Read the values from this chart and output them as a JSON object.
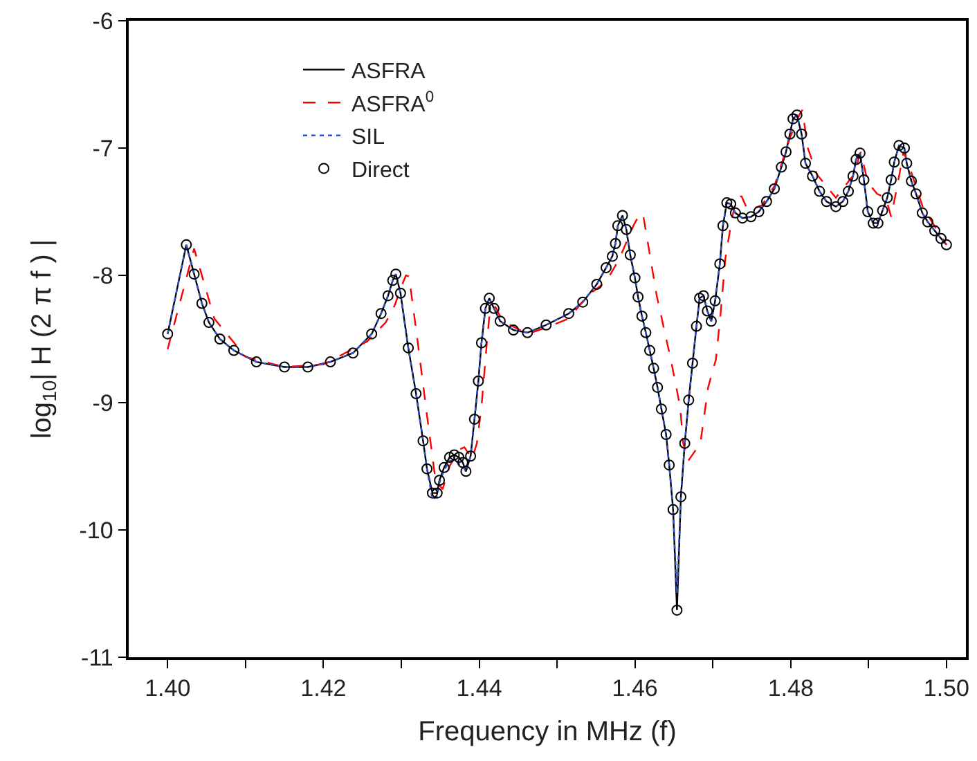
{
  "chart_data": {
    "type": "line",
    "xlabel": "Frequency in MHz (f)",
    "ylabel": "log$_{10}$| H (2 π f ) |",
    "xlim": [
      1.395,
      1.5025
    ],
    "ylim": [
      -11,
      -6
    ],
    "xticks": [
      {
        "value": 1.4,
        "label": "1.40"
      },
      {
        "value": 1.41,
        "label": null
      },
      {
        "value": 1.42,
        "label": "1.42"
      },
      {
        "value": 1.43,
        "label": null
      },
      {
        "value": 1.44,
        "label": "1.44"
      },
      {
        "value": 1.45,
        "label": null
      },
      {
        "value": 1.46,
        "label": "1.46"
      },
      {
        "value": 1.47,
        "label": null
      },
      {
        "value": 1.48,
        "label": "1.48"
      },
      {
        "value": 1.49,
        "label": null
      },
      {
        "value": 1.5,
        "label": "1.50"
      }
    ],
    "yticks": [
      -11,
      -10,
      -9,
      -8,
      -7,
      -6
    ],
    "legend": "top left",
    "x": [
      1.4,
      1.4024,
      1.4034,
      1.4044,
      1.4053,
      1.4067,
      1.4085,
      1.4114,
      1.415,
      1.418,
      1.4209,
      1.4238,
      1.4262,
      1.4274,
      1.4283,
      1.4289,
      1.4293,
      1.4299,
      1.4309,
      1.4319,
      1.4328,
      1.4333,
      1.434,
      1.4346,
      1.4349,
      1.4355,
      1.4362,
      1.4368,
      1.4374,
      1.4379,
      1.4383,
      1.4389,
      1.4394,
      1.4399,
      1.4403,
      1.4408,
      1.4413,
      1.4419,
      1.4427,
      1.4444,
      1.4462,
      1.4486,
      1.4515,
      1.4533,
      1.4551,
      1.4563,
      1.4571,
      1.4575,
      1.4578,
      1.4584,
      1.4589,
      1.4594,
      1.46,
      1.4604,
      1.4609,
      1.4614,
      1.4619,
      1.4624,
      1.4629,
      1.4634,
      1.464,
      1.4644,
      1.4649,
      1.4654,
      1.4659,
      1.4664,
      1.4669,
      1.4674,
      1.4679,
      1.4683,
      1.4688,
      1.4693,
      1.4698,
      1.4703,
      1.4709,
      1.4713,
      1.4718,
      1.4723,
      1.4729,
      1.4738,
      1.4749,
      1.4759,
      1.4769,
      1.4779,
      1.4788,
      1.4794,
      1.4799,
      1.4803,
      1.4808,
      1.4814,
      1.4819,
      1.4828,
      1.4837,
      1.4846,
      1.4858,
      1.4867,
      1.4874,
      1.488,
      1.4884,
      1.4889,
      1.4894,
      1.4899,
      1.4906,
      1.4912,
      1.4918,
      1.4924,
      1.4929,
      1.4933,
      1.4939,
      1.4946,
      1.4949,
      1.4955,
      1.4961,
      1.4969,
      1.4976,
      1.4985,
      1.4993,
      1.5
    ],
    "series": [
      {
        "name": "ASFRA",
        "color": "#000000",
        "line_style": "solid",
        "marker": "none",
        "values": [
          -8.46,
          -7.76,
          -7.99,
          -8.22,
          -8.37,
          -8.5,
          -8.59,
          -8.68,
          -8.72,
          -8.72,
          -8.68,
          -8.61,
          -8.46,
          -8.3,
          -8.16,
          -8.04,
          -7.99,
          -8.14,
          -8.57,
          -8.93,
          -9.3,
          -9.52,
          -9.71,
          -9.71,
          -9.61,
          -9.51,
          -9.43,
          -9.41,
          -9.43,
          -9.47,
          -9.54,
          -9.42,
          -9.13,
          -8.83,
          -8.53,
          -8.26,
          -8.18,
          -8.26,
          -8.36,
          -8.43,
          -8.45,
          -8.39,
          -8.3,
          -8.21,
          -8.07,
          -7.94,
          -7.85,
          -7.75,
          -7.61,
          -7.53,
          -7.64,
          -7.84,
          -8.02,
          -8.17,
          -8.32,
          -8.45,
          -8.59,
          -8.73,
          -8.88,
          -9.05,
          -9.25,
          -9.49,
          -9.84,
          -10.63,
          -9.74,
          -9.32,
          -8.98,
          -8.69,
          -8.4,
          -8.18,
          -8.16,
          -8.28,
          -8.36,
          -8.2,
          -7.91,
          -7.61,
          -7.43,
          -7.44,
          -7.51,
          -7.55,
          -7.54,
          -7.5,
          -7.42,
          -7.32,
          -7.15,
          -7.03,
          -6.89,
          -6.77,
          -6.74,
          -6.89,
          -7.12,
          -7.22,
          -7.34,
          -7.42,
          -7.46,
          -7.42,
          -7.34,
          -7.22,
          -7.09,
          -7.04,
          -7.25,
          -7.5,
          -7.59,
          -7.59,
          -7.49,
          -7.39,
          -7.25,
          -7.11,
          -6.98,
          -7.0,
          -7.12,
          -7.26,
          -7.36,
          -7.51,
          -7.58,
          -7.65,
          -7.71,
          -7.76
        ]
      },
      {
        "name": "ASFRA$^{0}$",
        "color": "#ff0000",
        "line_style": "dashed",
        "marker": "none",
        "x": [
          1.4,
          1.4034,
          1.406,
          1.41,
          1.415,
          1.42,
          1.4256,
          1.428,
          1.4292,
          1.4298,
          1.4306,
          1.431,
          1.4321,
          1.4333,
          1.4344,
          1.4353,
          1.4362,
          1.4374,
          1.4381,
          1.4391,
          1.4397,
          1.4403,
          1.4409,
          1.4414,
          1.4421,
          1.443,
          1.4462,
          1.4486,
          1.4515,
          1.4539,
          1.4563,
          1.458,
          1.4598,
          1.4607,
          1.4611,
          1.4628,
          1.4646,
          1.4658,
          1.4662,
          1.4668,
          1.4684,
          1.4694,
          1.4704,
          1.471,
          1.4716,
          1.4725,
          1.4731,
          1.4737,
          1.4745,
          1.4763,
          1.4779,
          1.4799,
          1.4811,
          1.4815,
          1.4822,
          1.4834,
          1.4858,
          1.4881,
          1.489,
          1.4899,
          1.4911,
          1.4922,
          1.4929,
          1.4937,
          1.4945,
          1.4952,
          1.497,
          1.5
        ],
        "values": [
          -8.58,
          -7.79,
          -8.34,
          -8.64,
          -8.72,
          -8.7,
          -8.52,
          -8.37,
          -8.23,
          -8.12,
          -8.0,
          -8.01,
          -8.52,
          -9.1,
          -9.61,
          -9.68,
          -9.5,
          -9.37,
          -9.35,
          -9.44,
          -9.32,
          -9.03,
          -8.59,
          -8.26,
          -8.25,
          -8.36,
          -8.46,
          -8.41,
          -8.34,
          -8.16,
          -8.05,
          -7.87,
          -7.61,
          -7.51,
          -7.54,
          -8.16,
          -8.66,
          -9.03,
          -9.32,
          -9.46,
          -9.32,
          -8.88,
          -8.66,
          -8.3,
          -7.87,
          -7.54,
          -7.38,
          -7.38,
          -7.49,
          -7.45,
          -7.3,
          -6.92,
          -6.74,
          -6.7,
          -7.0,
          -7.21,
          -7.39,
          -7.21,
          -7.03,
          -7.27,
          -7.36,
          -7.39,
          -7.54,
          -7.29,
          -7.03,
          -7.14,
          -7.47,
          -7.76
        ]
      },
      {
        "name": "SIL",
        "color": "#3050d0",
        "line_style": "dotted",
        "marker": "none",
        "values": [
          -8.46,
          -7.76,
          -7.99,
          -8.22,
          -8.37,
          -8.5,
          -8.59,
          -8.68,
          -8.72,
          -8.72,
          -8.68,
          -8.61,
          -8.46,
          -8.3,
          -8.16,
          -8.04,
          -7.99,
          -8.14,
          -8.57,
          -8.93,
          -9.3,
          -9.52,
          -9.76,
          -9.74,
          -9.63,
          -9.53,
          -9.46,
          -9.45,
          -9.48,
          -9.5,
          -9.54,
          -9.42,
          -9.13,
          -8.83,
          -8.53,
          -8.26,
          -8.18,
          -8.26,
          -8.36,
          -8.43,
          -8.45,
          -8.39,
          -8.3,
          -8.21,
          -8.07,
          -7.94,
          -7.85,
          -7.75,
          -7.61,
          -7.53,
          -7.64,
          -7.84,
          -8.02,
          -8.17,
          -8.32,
          -8.45,
          -8.59,
          -8.73,
          -8.88,
          -9.05,
          -9.25,
          -9.49,
          -9.84,
          -10.5,
          -9.74,
          -9.32,
          -8.98,
          -8.69,
          -8.4,
          -8.18,
          -8.16,
          -8.28,
          -8.36,
          -8.2,
          -7.91,
          -7.61,
          -7.43,
          -7.44,
          -7.51,
          -7.55,
          -7.54,
          -7.5,
          -7.42,
          -7.32,
          -7.15,
          -7.03,
          -6.89,
          -6.77,
          -6.74,
          -6.89,
          -7.12,
          -7.22,
          -7.34,
          -7.42,
          -7.46,
          -7.42,
          -7.34,
          -7.22,
          -7.09,
          -7.04,
          -7.25,
          -7.5,
          -7.59,
          -7.59,
          -7.49,
          -7.39,
          -7.25,
          -7.11,
          -6.98,
          -7.0,
          -7.12,
          -7.26,
          -7.36,
          -7.51,
          -7.58,
          -7.65,
          -7.71,
          -7.76
        ]
      },
      {
        "name": "Direct",
        "type": "scatter",
        "color": "#000000",
        "marker": "circle",
        "values": [
          -8.46,
          -7.76,
          -7.99,
          -8.22,
          -8.37,
          -8.5,
          -8.59,
          -8.68,
          -8.72,
          -8.72,
          -8.68,
          -8.61,
          -8.46,
          -8.3,
          -8.16,
          -8.04,
          -7.99,
          -8.14,
          -8.57,
          -8.93,
          -9.3,
          -9.52,
          -9.71,
          -9.71,
          -9.61,
          -9.51,
          -9.43,
          -9.41,
          -9.43,
          -9.47,
          -9.54,
          -9.42,
          -9.13,
          -8.83,
          -8.53,
          -8.26,
          -8.18,
          -8.26,
          -8.36,
          -8.43,
          -8.45,
          -8.39,
          -8.3,
          -8.21,
          -8.07,
          -7.94,
          -7.85,
          -7.75,
          -7.61,
          -7.53,
          -7.64,
          -7.84,
          -8.02,
          -8.17,
          -8.32,
          -8.45,
          -8.59,
          -8.73,
          -8.88,
          -9.05,
          -9.25,
          -9.49,
          -9.84,
          -10.63,
          -9.74,
          -9.32,
          -8.98,
          -8.69,
          -8.4,
          -8.18,
          -8.16,
          -8.28,
          -8.36,
          -8.2,
          -7.91,
          -7.61,
          -7.43,
          -7.44,
          -7.51,
          -7.55,
          -7.54,
          -7.5,
          -7.42,
          -7.32,
          -7.15,
          -7.03,
          -6.89,
          -6.77,
          -6.74,
          -6.89,
          -7.12,
          -7.22,
          -7.34,
          -7.42,
          -7.46,
          -7.42,
          -7.34,
          -7.22,
          -7.09,
          -7.04,
          -7.25,
          -7.5,
          -7.59,
          -7.59,
          -7.49,
          -7.39,
          -7.25,
          -7.11,
          -6.98,
          -7.0,
          -7.12,
          -7.26,
          -7.36,
          -7.51,
          -7.58,
          -7.65,
          -7.71,
          -7.76
        ]
      }
    ]
  }
}
